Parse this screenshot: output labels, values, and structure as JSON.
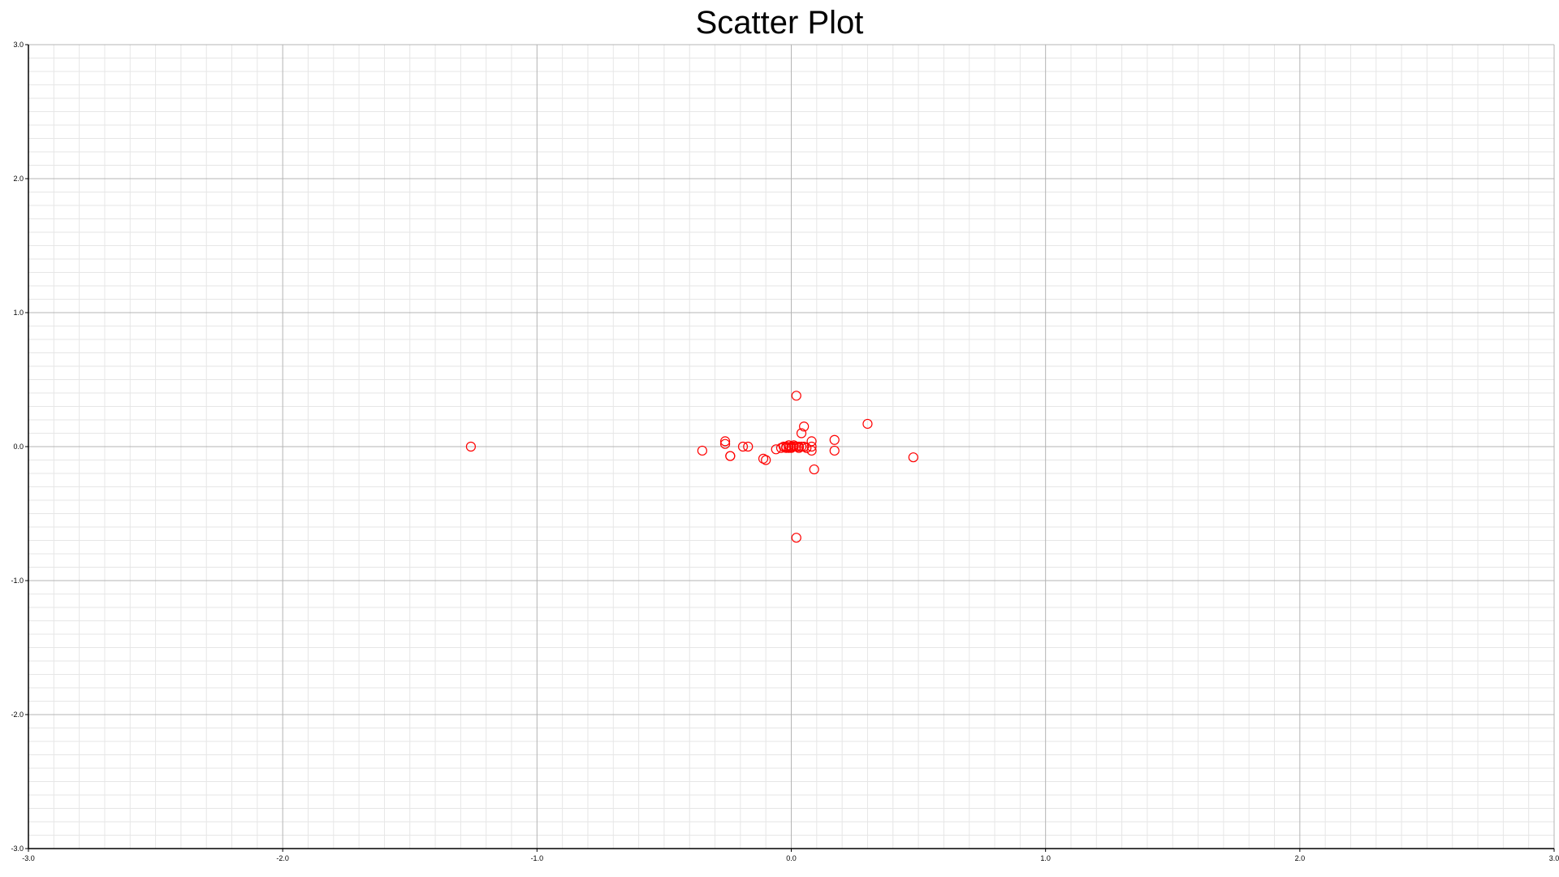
{
  "chart_data": {
    "type": "scatter",
    "title": "Scatter Plot",
    "xlabel": "",
    "ylabel": "",
    "xlim": [
      -3.0,
      3.0
    ],
    "ylim": [
      -3.0,
      3.0
    ],
    "x_ticks": [
      "-3.0",
      "-2.0",
      "-1.0",
      "0.0",
      "1.0",
      "2.0",
      "3.0"
    ],
    "y_ticks": [
      "3.0",
      "2.0",
      "1.0",
      "0.0",
      "-1.0",
      "-2.0",
      "-3.0"
    ],
    "grid": true,
    "marker": "open-circle",
    "marker_color": "#ff0000",
    "series": [
      {
        "points": [
          [
            -1.26,
            0.0
          ],
          [
            -0.35,
            -0.03
          ],
          [
            -0.26,
            0.04
          ],
          [
            -0.26,
            0.02
          ],
          [
            -0.24,
            -0.07
          ],
          [
            -0.24,
            -0.07
          ],
          [
            -0.19,
            0.0
          ],
          [
            -0.17,
            0.0
          ],
          [
            -0.11,
            -0.09
          ],
          [
            -0.1,
            -0.1
          ],
          [
            -0.06,
            -0.02
          ],
          [
            -0.04,
            -0.01
          ],
          [
            -0.03,
            0.0
          ],
          [
            -0.02,
            -0.01
          ],
          [
            -0.02,
            0.0
          ],
          [
            -0.01,
            0.01
          ],
          [
            -0.01,
            -0.01
          ],
          [
            0.0,
            0.0
          ],
          [
            0.0,
            -0.01
          ],
          [
            0.01,
            0.0
          ],
          [
            0.01,
            0.01
          ],
          [
            0.02,
            0.0
          ],
          [
            0.02,
            0.38
          ],
          [
            0.02,
            -0.68
          ],
          [
            0.03,
            0.0
          ],
          [
            0.03,
            -0.01
          ],
          [
            0.04,
            0.0
          ],
          [
            0.04,
            0.1
          ],
          [
            0.05,
            0.0
          ],
          [
            0.05,
            0.15
          ],
          [
            0.06,
            -0.01
          ],
          [
            0.08,
            0.04
          ],
          [
            0.08,
            0.0
          ],
          [
            0.08,
            -0.03
          ],
          [
            0.09,
            -0.17
          ],
          [
            0.17,
            0.05
          ],
          [
            0.17,
            -0.03
          ],
          [
            0.3,
            0.17
          ],
          [
            0.48,
            -0.08
          ]
        ]
      }
    ]
  }
}
